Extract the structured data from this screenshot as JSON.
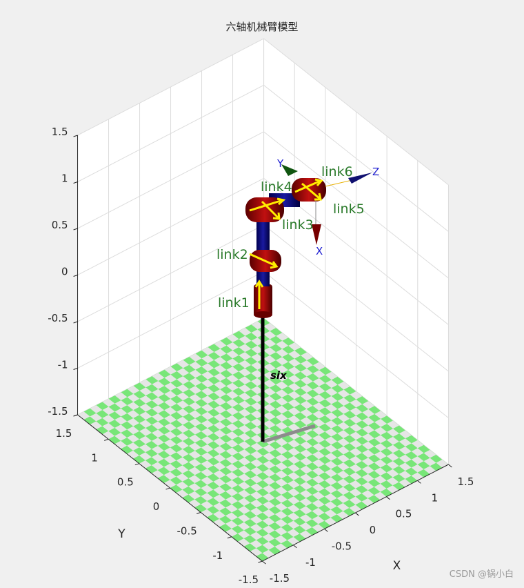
{
  "chart_data": {
    "type": "robot3d",
    "title": "六轴机械臂模型",
    "xlabel": "X",
    "ylabel": "Y",
    "xlim": [
      -1.5,
      1.5
    ],
    "ylim": [
      -1.5,
      1.5
    ],
    "zlim": [
      -1.5,
      1.5
    ],
    "xticks": [
      -1.5,
      -1,
      -0.5,
      0,
      0.5,
      1,
      1.5
    ],
    "yticks": [
      -1.5,
      -1,
      -0.5,
      0,
      0.5,
      1,
      1.5
    ],
    "zticks": [
      -1.5,
      -1,
      -0.5,
      0,
      0.5,
      1,
      1.5
    ],
    "grid": true,
    "floor_colors": [
      "#78e678",
      "#e6e6e6"
    ],
    "robot_name": "six",
    "link_labels": [
      "link1",
      "link2",
      "link3",
      "link4",
      "link5",
      "link6"
    ],
    "frame_labels": [
      "X",
      "Y",
      "Z"
    ]
  },
  "watermark": "CSDN @锅小白"
}
